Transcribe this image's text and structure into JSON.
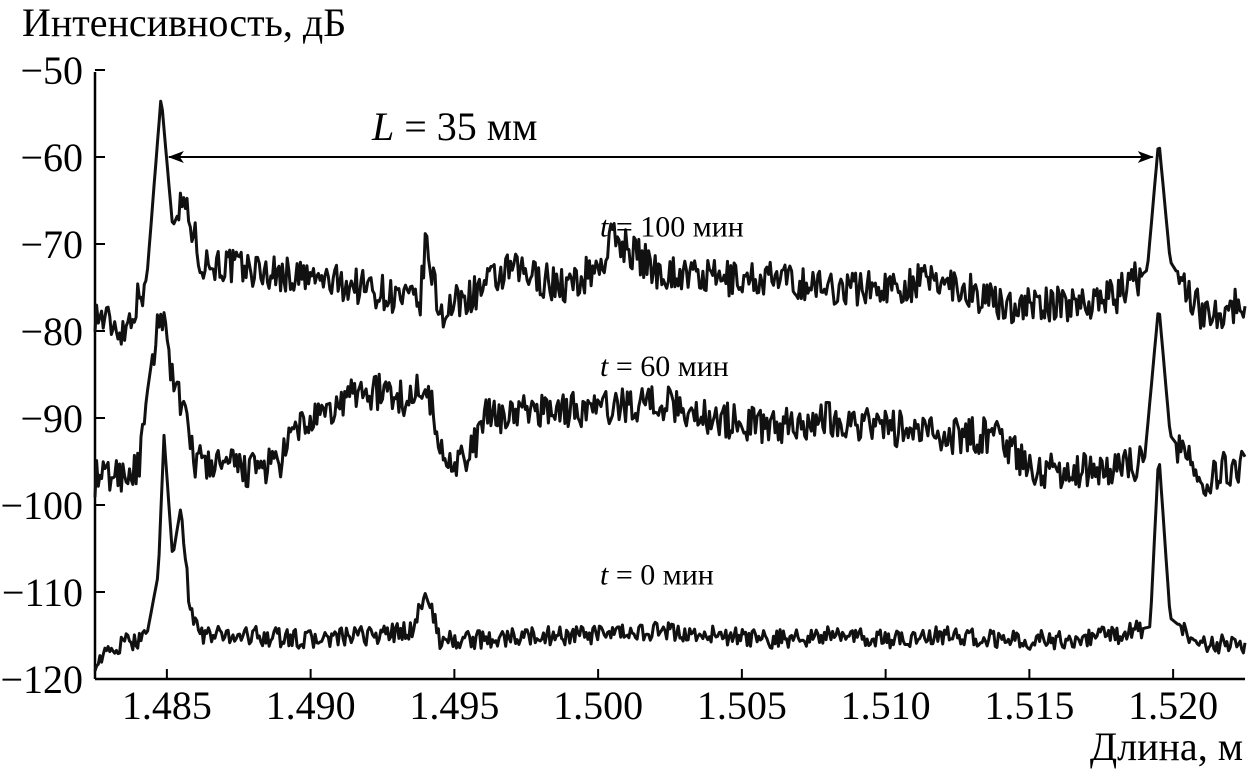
{
  "chart_data": {
    "type": "line",
    "title": "",
    "ylabel": "Интенсивность, дБ",
    "xlabel": "Длина, м",
    "xlim": [
      1.4825,
      1.5225
    ],
    "ylim": [
      -120,
      -50
    ],
    "x_ticks": [
      "1.485",
      "1.490",
      "1.495",
      "1.500",
      "1.505",
      "1.510",
      "1.515",
      "1.520"
    ],
    "y_ticks": [
      "−50",
      "−60",
      "−70",
      "−80",
      "−90",
      "−100",
      "−110",
      "−120"
    ],
    "grid": false,
    "legend": "none",
    "annotations": {
      "length_prefix": "L",
      "length_value": " = 35 мм",
      "arrow_from_x": 1.485,
      "arrow_to_x": 1.5195,
      "arrow_y": -60
    },
    "series": [
      {
        "label_prefix": "t",
        "label_value": " = 100 мин",
        "label_x": 1.5025,
        "label_y": -68,
        "base": -74,
        "points": [
          [
            1.4825,
            -78
          ],
          [
            1.4835,
            -80
          ],
          [
            1.4843,
            -74
          ],
          [
            1.4848,
            -53
          ],
          [
            1.4852,
            -68
          ],
          [
            1.4856,
            -65
          ],
          [
            1.4862,
            -72
          ],
          [
            1.488,
            -73
          ],
          [
            1.49,
            -74
          ],
          [
            1.492,
            -75
          ],
          [
            1.4938,
            -77
          ],
          [
            1.494,
            -70
          ],
          [
            1.4945,
            -78
          ],
          [
            1.4955,
            -76
          ],
          [
            1.497,
            -73
          ],
          [
            1.499,
            -75
          ],
          [
            1.5002,
            -72
          ],
          [
            1.5005,
            -69
          ],
          [
            1.502,
            -73
          ],
          [
            1.504,
            -74
          ],
          [
            1.506,
            -74
          ],
          [
            1.508,
            -75
          ],
          [
            1.51,
            -75
          ],
          [
            1.512,
            -74
          ],
          [
            1.514,
            -77
          ],
          [
            1.516,
            -77
          ],
          [
            1.518,
            -76
          ],
          [
            1.5191,
            -73
          ],
          [
            1.5195,
            -58
          ],
          [
            1.5199,
            -72
          ],
          [
            1.521,
            -78
          ],
          [
            1.5225,
            -77
          ]
        ]
      },
      {
        "label_prefix": "t",
        "label_value": " = 60 мин",
        "label_x": 1.5025,
        "label_y": -84,
        "base": -92,
        "points": [
          [
            1.4825,
            -97
          ],
          [
            1.484,
            -96
          ],
          [
            1.4848,
            -77
          ],
          [
            1.4852,
            -85
          ],
          [
            1.486,
            -95
          ],
          [
            1.488,
            -96
          ],
          [
            1.489,
            -95
          ],
          [
            1.4895,
            -91
          ],
          [
            1.4905,
            -90
          ],
          [
            1.4915,
            -87
          ],
          [
            1.4925,
            -87
          ],
          [
            1.4935,
            -88
          ],
          [
            1.494,
            -85
          ],
          [
            1.4945,
            -94
          ],
          [
            1.4955,
            -95
          ],
          [
            1.496,
            -90
          ],
          [
            1.498,
            -89
          ],
          [
            1.5,
            -89
          ],
          [
            1.502,
            -88
          ],
          [
            1.504,
            -90
          ],
          [
            1.506,
            -91
          ],
          [
            1.508,
            -90
          ],
          [
            1.51,
            -91
          ],
          [
            1.512,
            -92
          ],
          [
            1.514,
            -92
          ],
          [
            1.515,
            -96
          ],
          [
            1.517,
            -96
          ],
          [
            1.519,
            -95
          ],
          [
            1.5195,
            -77
          ],
          [
            1.5199,
            -92
          ],
          [
            1.521,
            -97
          ],
          [
            1.5225,
            -95
          ]
        ]
      },
      {
        "label_prefix": "t",
        "label_value": " = 0 мин",
        "label_x": 1.5025,
        "label_y": -108,
        "base": -115.5,
        "points": [
          [
            1.4825,
            -118
          ],
          [
            1.4835,
            -116
          ],
          [
            1.4843,
            -115
          ],
          [
            1.4847,
            -108
          ],
          [
            1.4849,
            -92
          ],
          [
            1.4852,
            -106
          ],
          [
            1.4855,
            -100
          ],
          [
            1.4858,
            -112
          ],
          [
            1.4862,
            -115
          ],
          [
            1.488,
            -115
          ],
          [
            1.49,
            -115.5
          ],
          [
            1.492,
            -115
          ],
          [
            1.4935,
            -114.5
          ],
          [
            1.494,
            -110
          ],
          [
            1.4945,
            -115.5
          ],
          [
            1.496,
            -115.5
          ],
          [
            1.498,
            -115
          ],
          [
            1.5,
            -115
          ],
          [
            1.502,
            -114.5
          ],
          [
            1.504,
            -115
          ],
          [
            1.506,
            -115.5
          ],
          [
            1.508,
            -115
          ],
          [
            1.51,
            -115.5
          ],
          [
            1.512,
            -115
          ],
          [
            1.514,
            -115.5
          ],
          [
            1.516,
            -115.5
          ],
          [
            1.518,
            -115
          ],
          [
            1.5192,
            -114
          ],
          [
            1.5195,
            -94
          ],
          [
            1.5199,
            -113
          ],
          [
            1.521,
            -116
          ],
          [
            1.5225,
            -116
          ]
        ]
      }
    ]
  }
}
